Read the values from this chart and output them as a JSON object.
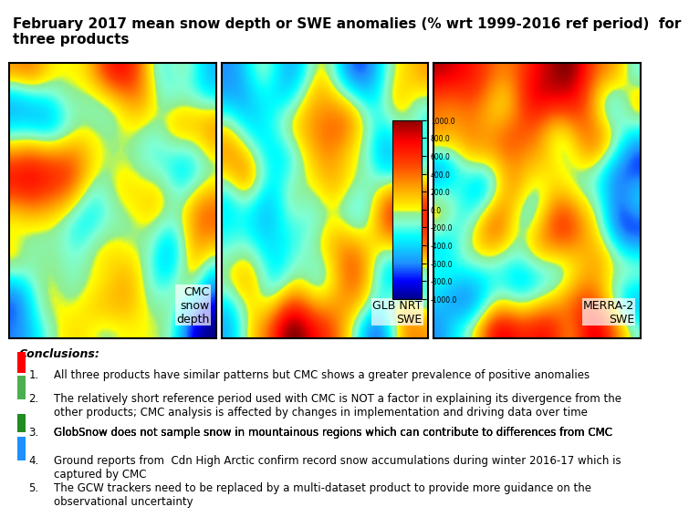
{
  "title": "February 2017 mean snow depth or SWE anomalies (% wrt 1999-2016 ref period)  for\nthree products",
  "title_fontsize": 11,
  "title_fontweight": "bold",
  "bg_color": "#ffffff",
  "map_image_1_label_line1": "CMC",
  "map_image_1_label_line2": "snow",
  "map_image_1_label_line3": "depth",
  "map_image_2_label_line1": "GLB NRT",
  "map_image_2_label_line2": "SWE",
  "map_image_3_label_line1": "MERRA-2",
  "map_image_3_label_line2": "SWE",
  "colorbar_ticks": [
    "1000.0",
    "800.0",
    "600.0",
    "400.0",
    "200.0",
    "0.0",
    "-200.0",
    "-400.0",
    "-600.0",
    "-800.0",
    "-1000.0"
  ],
  "panel_border_color": "#000000",
  "conclusions_title": "Conclusions:",
  "conclusions": [
    "All three products have similar patterns but CMC shows a greater prevalence of positive anomalies",
    "The relatively short reference period used with CMC is NOT a factor in explaining its divergence from the\nother products; CMC analysis is affected by changes in implementation and driving data over time",
    "GlobSnow does not sample snow in mountainous regions which can contribute to differences from CMC",
    "Ground reports from  Cdn High Arctic confirm record snow accumulations during winter 2016-17 which is\ncaptured by CMC",
    "The GCW trackers need to be replaced by a multi-dataset product to provide more guidance on the\nobservational uncertainty"
  ],
  "conclusion_underline": [
    false,
    false,
    true,
    false,
    false
  ],
  "side_colors": [
    "#ff0000",
    "#4CAF50",
    "#228B22",
    "#1E90FF",
    "#ffffff"
  ],
  "font_size_conclusions": 8.5
}
